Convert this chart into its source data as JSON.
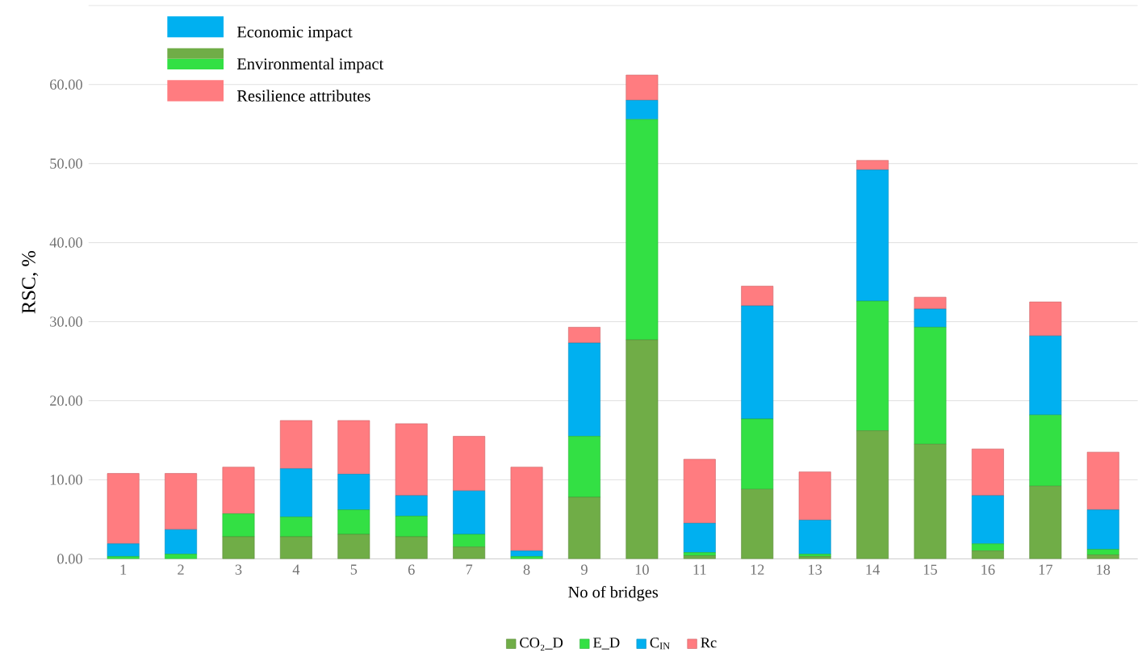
{
  "chart_data": {
    "type": "bar",
    "stacked": true,
    "xlabel": "No of bridges",
    "ylabel": "RSC, %",
    "categories": [
      "1",
      "2",
      "3",
      "4",
      "5",
      "6",
      "7",
      "8",
      "9",
      "10",
      "11",
      "12",
      "13",
      "14",
      "15",
      "16",
      "17",
      "18"
    ],
    "series": [
      {
        "name": "CO₂_D",
        "color": "#70ad47",
        "values": [
          0,
          0,
          2.8,
          2.8,
          3.1,
          2.8,
          1.5,
          0,
          7.8,
          27.7,
          0.4,
          8.8,
          0.3,
          16.2,
          14.5,
          1.0,
          9.2,
          0.5
        ]
      },
      {
        "name": "E_D",
        "color": "#33e044",
        "values": [
          0.3,
          0.6,
          2.9,
          2.5,
          3.1,
          2.6,
          1.6,
          0.3,
          7.7,
          27.9,
          0.4,
          8.9,
          0.3,
          16.4,
          14.8,
          0.9,
          9.0,
          0.7
        ]
      },
      {
        "name": "C$_{IN}$",
        "color": "#00b0f0",
        "values": [
          1.6,
          3.1,
          0,
          6.1,
          4.5,
          2.6,
          5.5,
          0.7,
          11.8,
          2.4,
          3.7,
          14.3,
          4.3,
          16.6,
          2.3,
          6.1,
          10.0,
          5.0
        ]
      },
      {
        "name": "Rc",
        "color": "#ff7c80",
        "values": [
          8.9,
          7.1,
          5.9,
          6.1,
          6.8,
          9.1,
          6.9,
          10.6,
          2.0,
          3.2,
          8.1,
          2.5,
          6.1,
          1.2,
          1.5,
          5.9,
          4.3,
          7.3
        ]
      }
    ],
    "ylim": [
      0,
      70
    ],
    "yticks": [
      {
        "value": 0,
        "label": "0.00"
      },
      {
        "value": 10,
        "label": "10.00"
      },
      {
        "value": 20,
        "label": "20.00"
      },
      {
        "value": 30,
        "label": "30.00"
      },
      {
        "value": 40,
        "label": "40.00"
      },
      {
        "value": 50,
        "label": "50.00"
      },
      {
        "value": 60,
        "label": "60.00"
      },
      {
        "value": 70,
        "label": null
      }
    ],
    "grid": "y",
    "legend": "bottom",
    "annotations": [
      "Economic impact",
      "Environmental impact",
      "Resilience attributes"
    ]
  }
}
